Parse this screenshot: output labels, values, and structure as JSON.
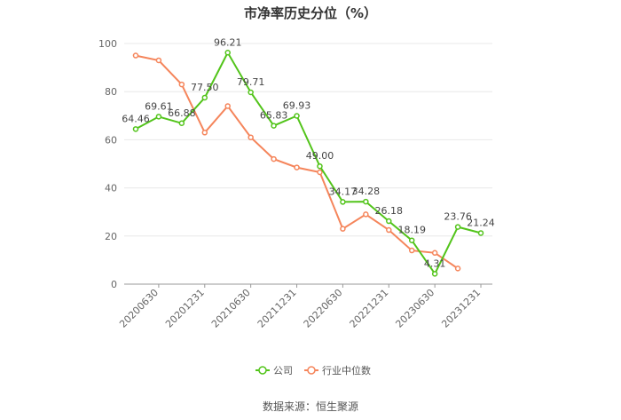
{
  "title": "市净率历史分位（%）",
  "source": "数据来源：恒生聚源",
  "chart_data": {
    "type": "line",
    "title": "市净率历史分位（%）",
    "xlabel": "",
    "ylabel": "",
    "ylim": [
      0,
      100
    ],
    "yticks": [
      0,
      20,
      40,
      60,
      80,
      100
    ],
    "grid": true,
    "legend": "bottom",
    "x_ticks": [
      "20200630",
      "20201231",
      "20210630",
      "20211231",
      "20220630",
      "20221231",
      "20230630",
      "20231231"
    ],
    "x_positions": 16,
    "series": [
      {
        "name": "公司",
        "color": "#52c41a",
        "labels": true,
        "values": [
          64.46,
          69.61,
          66.88,
          77.5,
          96.21,
          79.71,
          65.83,
          69.93,
          49.0,
          34.17,
          34.28,
          26.18,
          18.19,
          4.31,
          23.76,
          21.24
        ]
      },
      {
        "name": "行业中位数",
        "color": "#f5855b",
        "labels": false,
        "values": [
          95,
          93,
          83,
          63,
          74,
          61,
          52,
          48.5,
          46.5,
          23,
          29,
          22.5,
          14,
          13,
          6.5
        ]
      }
    ]
  }
}
